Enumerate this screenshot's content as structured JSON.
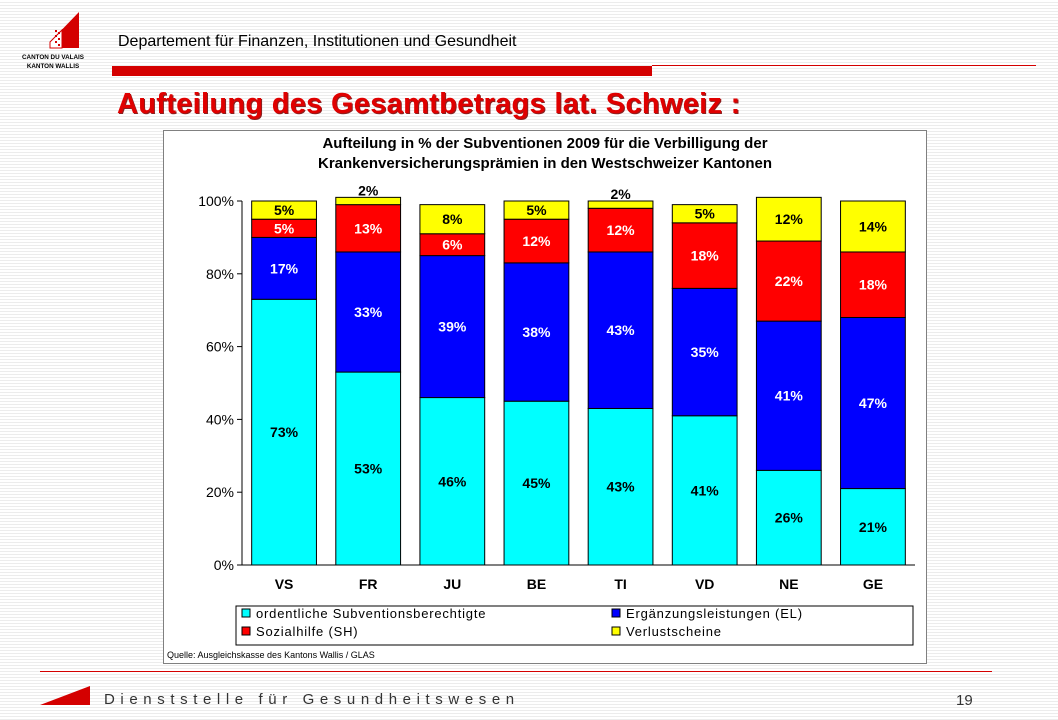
{
  "header": {
    "logo_text_1": "CANTON DU VALAIS",
    "logo_text_2": "KANTON WALLIS",
    "department": "Departement für Finanzen, Institutionen und Gesundheit",
    "title": "Aufteilung des Gesamtbetrags lat. Schweiz :"
  },
  "colors": {
    "accent_red": "#d40000",
    "title_red": "#e00000"
  },
  "chart_data": {
    "type": "bar",
    "stacked": true,
    "percent": true,
    "title": "Aufteilung in % der Subventionen 2009 für die Verbilligung der Krankenversicherungsprämien in den Westschweizer Kantonen",
    "title_lines": [
      "Aufteilung in % der Subventionen 2009 für die Verbilligung der",
      "Krankenversicherungsprämien in den Westschweizer Kantonen"
    ],
    "categories": [
      "VS",
      "FR",
      "JU",
      "BE",
      "TI",
      "VD",
      "NE",
      "GE"
    ],
    "series": [
      {
        "name": "ordentliche Subventionsberechtigte",
        "color": "#00ffff",
        "values": [
          73,
          53,
          46,
          45,
          43,
          41,
          26,
          21
        ],
        "labels": [
          "73%",
          "53%",
          "46%",
          "45%",
          "43%",
          "41%",
          "26%",
          "21%"
        ]
      },
      {
        "name": "Ergänzungsleistungen (EL)",
        "color": "#0000ff",
        "values": [
          17,
          33,
          39,
          38,
          43,
          35,
          41,
          47
        ],
        "labels": [
          "17%",
          "33%",
          "39%",
          "38%",
          "43%",
          "35%",
          "41%",
          "47%"
        ]
      },
      {
        "name": "Sozialhilfe (SH)",
        "color": "#ff0000",
        "values": [
          5,
          13,
          6,
          12,
          12,
          18,
          22,
          18
        ],
        "labels": [
          "5%",
          "13%",
          "6%",
          "12%",
          "12%",
          "18%",
          "22%",
          "18%"
        ]
      },
      {
        "name": "Verlustscheine",
        "color": "#ffff00",
        "values": [
          5,
          2,
          8,
          5,
          2,
          5,
          12,
          14
        ],
        "labels": [
          "5%",
          "2%",
          "8%",
          "5%",
          "2%",
          "5%",
          "12%",
          "14%"
        ]
      }
    ],
    "ylim": [
      0,
      100
    ],
    "yticks": [
      "0%",
      "20%",
      "40%",
      "60%",
      "80%",
      "100%"
    ],
    "legend_position": "bottom",
    "grid": false,
    "source": "Quelle: Ausgleichskasse des Kantons Wallis / GLAS"
  },
  "footer": {
    "text": "Dienststelle für Gesundheitswesen",
    "page_number": "19"
  }
}
